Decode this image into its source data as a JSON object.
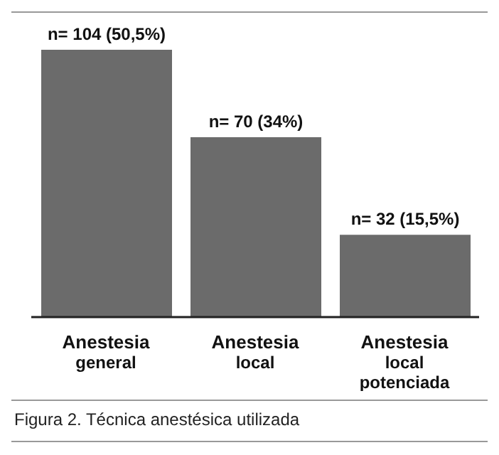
{
  "chart_data": {
    "type": "bar",
    "categories": [
      "Anestesia general",
      "Anestesia local",
      "Anestesia local potenciada"
    ],
    "values": [
      104,
      70,
      32
    ],
    "color": "#6b6b6b",
    "value_labels": [
      "n= 104 (50,5%)",
      "n= 70 (34%)",
      "n= 32 (15,5%)"
    ],
    "annotations": [
      "Figura 2. Técnica anestésica utilizada"
    ]
  }
}
